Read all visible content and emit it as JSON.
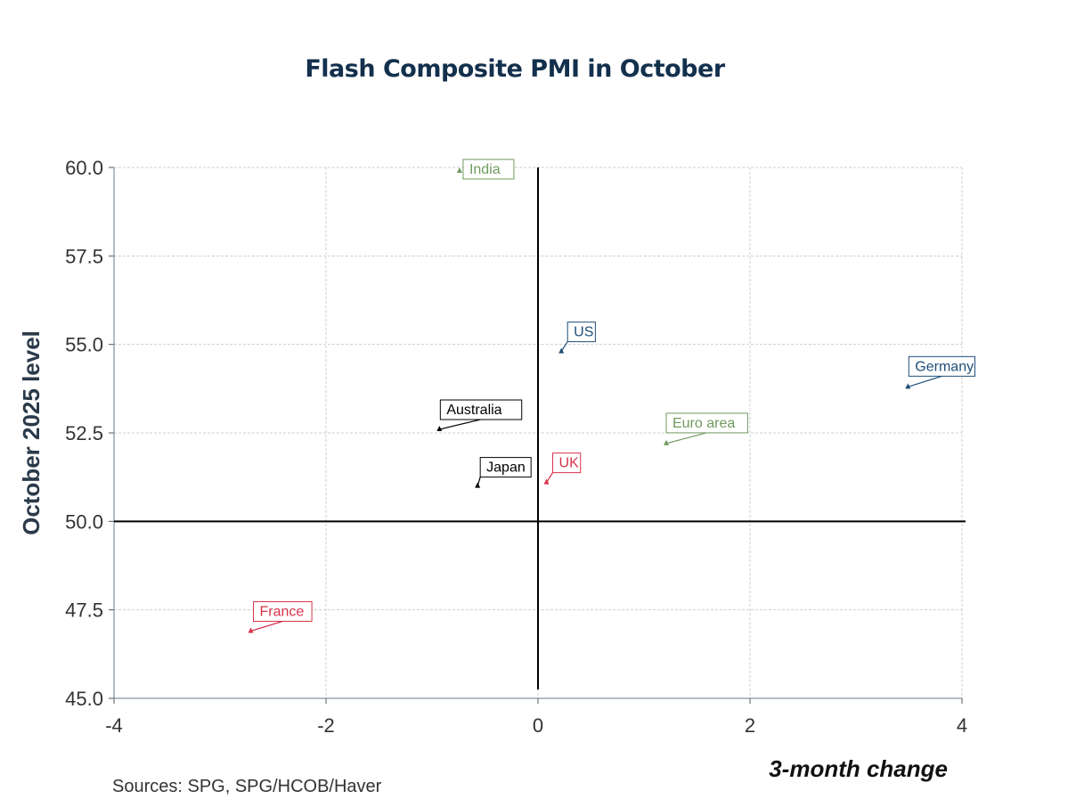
{
  "chart_data": {
    "type": "scatter",
    "title": "Flash Composite PMI in October",
    "xlabel": "3-month change",
    "ylabel": "October 2025 level",
    "xlim": [
      -4,
      4
    ],
    "ylim": [
      45,
      60
    ],
    "xticks": [
      "-4",
      "-2",
      "0",
      "2",
      "4"
    ],
    "yticks": [
      "45.0",
      "47.5",
      "50.0",
      "52.5",
      "55.0",
      "57.5",
      "60.0"
    ],
    "grid": true,
    "reference_lines": {
      "x": 0,
      "y": 50
    },
    "points": [
      {
        "label": "India",
        "x": -0.74,
        "y": 59.9,
        "color": "#6f9a5e"
      },
      {
        "label": "US",
        "x": 0.22,
        "y": 54.8,
        "color": "#1f4e79"
      },
      {
        "label": "Germany",
        "x": 3.49,
        "y": 53.8,
        "color": "#1f4e79"
      },
      {
        "label": "Australia",
        "x": -0.93,
        "y": 52.6,
        "color": "#000000"
      },
      {
        "label": "Euro area",
        "x": 1.21,
        "y": 52.2,
        "color": "#6f9a5e"
      },
      {
        "label": "Japan",
        "x": -0.57,
        "y": 51.0,
        "color": "#000000"
      },
      {
        "label": "UK",
        "x": 0.08,
        "y": 51.1,
        "color": "#d6334a"
      },
      {
        "label": "France",
        "x": -2.71,
        "y": 46.9,
        "color": "#d6334a"
      }
    ]
  },
  "sources": "Sources:  SPG, SPG/HCOB/Haver"
}
